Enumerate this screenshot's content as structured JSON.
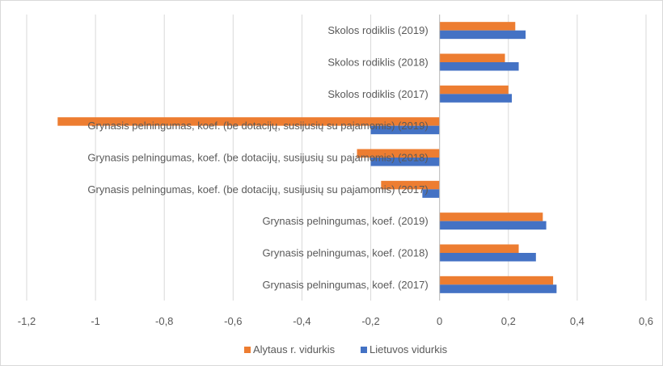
{
  "chart_data": {
    "type": "bar",
    "orientation": "horizontal",
    "categories": [
      "Skolos rodiklis (2019)",
      "Skolos rodiklis (2018)",
      "Skolos rodiklis (2017)",
      "Grynasis pelningumas, koef. (be dotacijų, susijusių su pajamomis) (2019)",
      "Grynasis pelningumas, koef. (be dotacijų, susijusių su pajamomis) (2018)",
      "Grynasis pelningumas, koef. (be dotacijų, susijusių su pajamomis) (2017)",
      "Grynasis pelningumas, koef. (2019)",
      "Grynasis pelningumas, koef.  (2018)",
      "Grynasis pelningumas, koef. (2017)"
    ],
    "series": [
      {
        "name": "Alytaus r. vidurkis",
        "color": "#ED7D31",
        "values": [
          0.22,
          0.19,
          0.2,
          -1.11,
          -0.24,
          -0.17,
          0.3,
          0.23,
          0.33
        ]
      },
      {
        "name": "Lietuvos vidurkis",
        "color": "#4472C4",
        "values": [
          0.25,
          0.23,
          0.21,
          -0.2,
          -0.2,
          -0.05,
          0.31,
          0.28,
          0.34
        ]
      }
    ],
    "xlim": [
      -1.2,
      0.6
    ],
    "xticks": [
      -1.2,
      -1.0,
      -0.8,
      -0.6,
      -0.4,
      -0.2,
      0,
      0.2,
      0.4,
      0.6
    ],
    "xtick_labels": [
      "-1,2",
      "-1",
      "-0,8",
      "-0,6",
      "-0,4",
      "-0,2",
      "0",
      "0,2",
      "0,4",
      "0,6"
    ],
    "grid": true,
    "legend_position": "bottom"
  }
}
